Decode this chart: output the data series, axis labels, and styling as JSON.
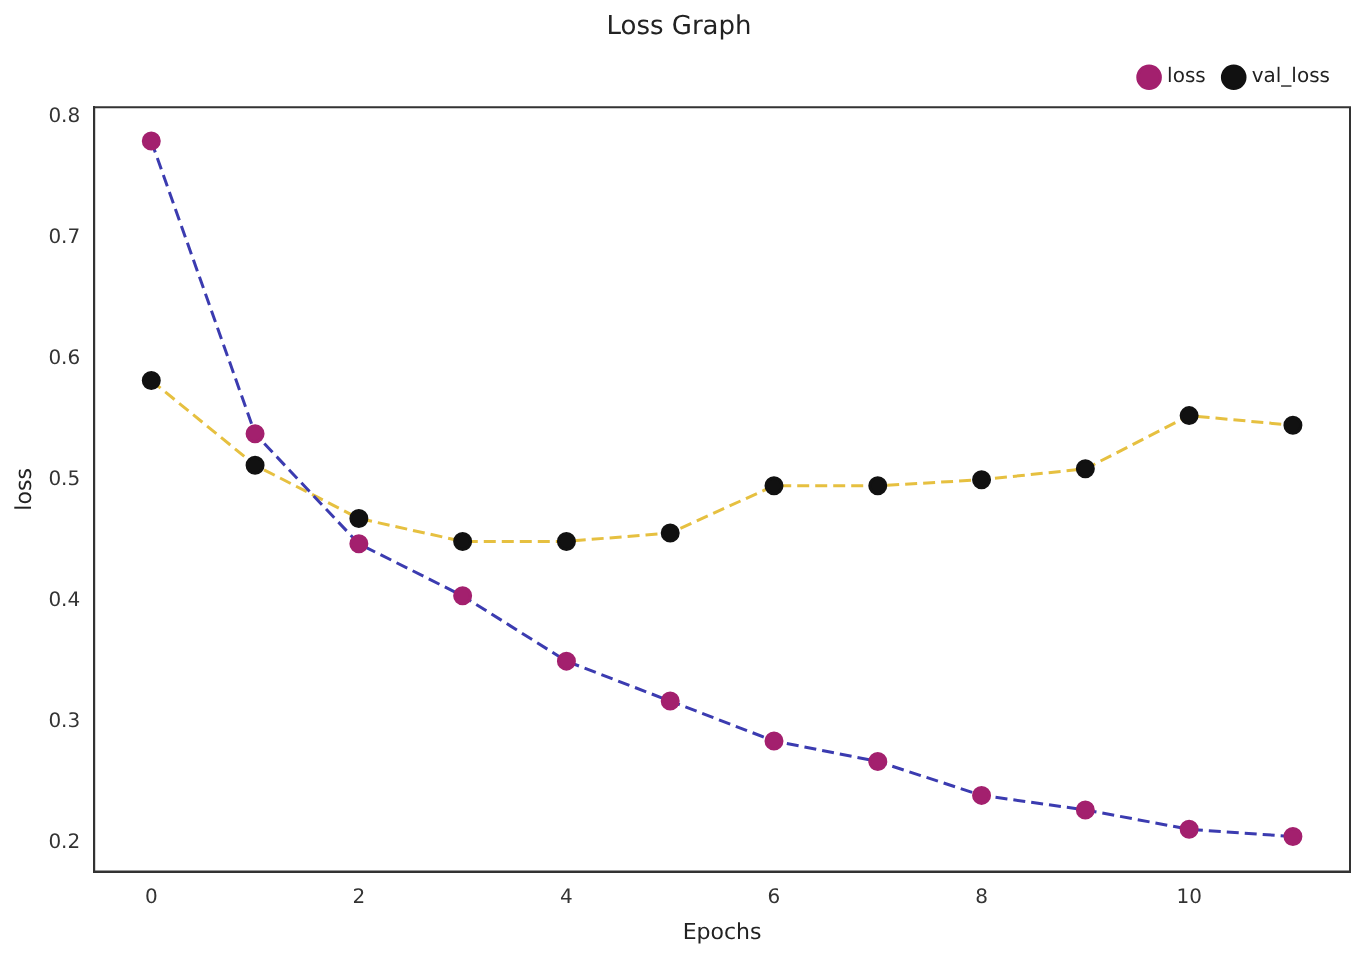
{
  "chart_data": {
    "type": "line",
    "title": "Loss Graph",
    "xlabel": "Epochs",
    "ylabel": "loss",
    "x": [
      0,
      1,
      2,
      3,
      4,
      5,
      6,
      7,
      8,
      9,
      10,
      11
    ],
    "series": [
      {
        "name": "loss",
        "color": "#3b3bb0",
        "colors": [
          "#a3206e",
          "#a3206e",
          "#a3206e",
          "#a3206e",
          "#a3206e",
          "#a3206e",
          "#a3206e",
          "#a3206e",
          "#a3206e",
          "#a3206e",
          "#a3206e",
          "#a3206e"
        ],
        "values": [
          0.78,
          0.538,
          0.447,
          0.404,
          0.35,
          0.317,
          0.284,
          0.267,
          0.239,
          0.227,
          0.211,
          0.205
        ]
      },
      {
        "name": "val_loss",
        "color": "#e6c040",
        "colors": [
          "#111111",
          "#111111",
          "#111111",
          "#111111",
          "#111111",
          "#111111",
          "#111111",
          "#111111",
          "#111111",
          "#111111",
          "#111111",
          "#111111"
        ],
        "values": [
          0.582,
          0.512,
          0.468,
          0.449,
          0.449,
          0.456,
          0.495,
          0.495,
          0.5,
          0.509,
          0.553,
          0.545
        ]
      }
    ],
    "xlim": [
      -0.55,
      11.55
    ],
    "xticks": [
      0,
      2,
      4,
      6,
      8,
      10
    ],
    "ylim": [
      0.176,
      0.808
    ],
    "yticks": [
      0.2,
      0.3,
      0.4,
      0.5,
      0.6,
      0.7,
      0.8
    ],
    "grid": false,
    "legend": "top right",
    "marker": "circle",
    "line_style": "dashed"
  }
}
